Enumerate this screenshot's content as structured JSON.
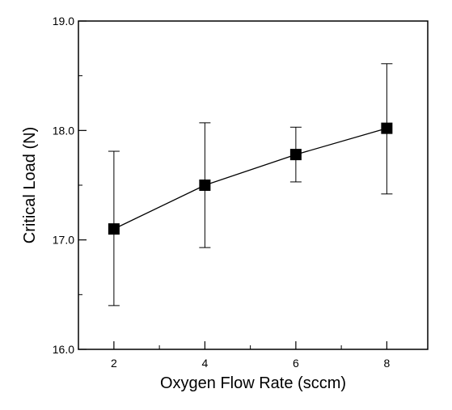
{
  "chart_data": {
    "type": "scatter",
    "title": "",
    "xlabel": "Oxygen Flow Rate (sccm)",
    "ylabel": "Critical Load (N)",
    "xlim": [
      1.22,
      8.9
    ],
    "ylim": [
      16.0,
      19.0
    ],
    "grid": false,
    "x_ticks": [
      {
        "value": 2,
        "label": "2"
      },
      {
        "value": 4,
        "label": "4"
      },
      {
        "value": 6,
        "label": "6"
      },
      {
        "value": 8,
        "label": "8"
      }
    ],
    "y_ticks": [
      {
        "value": 16.0,
        "label": "16.0"
      },
      {
        "value": 17.0,
        "label": "17.0"
      },
      {
        "value": 18.0,
        "label": "18.0"
      },
      {
        "value": 19.0,
        "label": "19.0"
      }
    ],
    "series": [
      {
        "marker": "square",
        "color": "#000000",
        "points": [
          {
            "x": 2,
            "y": 17.1,
            "err_low": 16.4,
            "err_high": 17.81
          },
          {
            "x": 4,
            "y": 17.5,
            "err_low": 16.93,
            "err_high": 18.07
          },
          {
            "x": 6,
            "y": 17.78,
            "err_low": 17.53,
            "err_high": 18.03
          },
          {
            "x": 8,
            "y": 18.02,
            "err_low": 17.42,
            "err_high": 18.61
          }
        ]
      }
    ]
  }
}
